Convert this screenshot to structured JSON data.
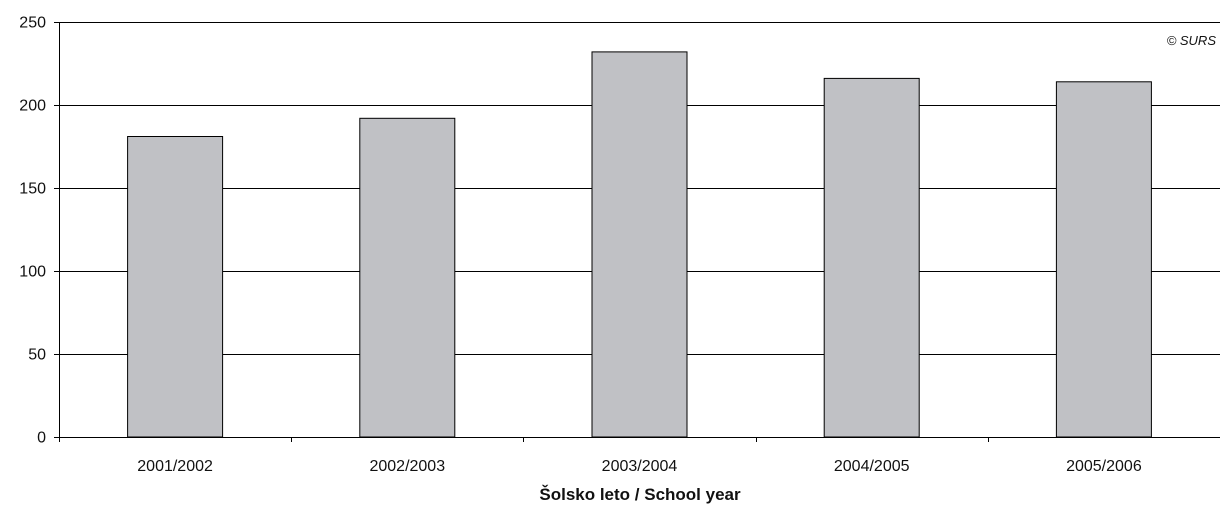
{
  "chart_data": {
    "type": "bar",
    "categories": [
      "2001/2002",
      "2002/2003",
      "2003/2004",
      "2004/2005",
      "2005/2006"
    ],
    "values": [
      181,
      192,
      232,
      216,
      214
    ],
    "xlabel": "Šolsko leto / School year",
    "ylabel": "",
    "ylim": [
      0,
      250
    ],
    "yticks": [
      0,
      50,
      100,
      150,
      200,
      250
    ],
    "grid": true,
    "legend": "none",
    "bar_color": "#c0c1c5",
    "bar_outline": "#000000",
    "credit": "© SURS"
  }
}
